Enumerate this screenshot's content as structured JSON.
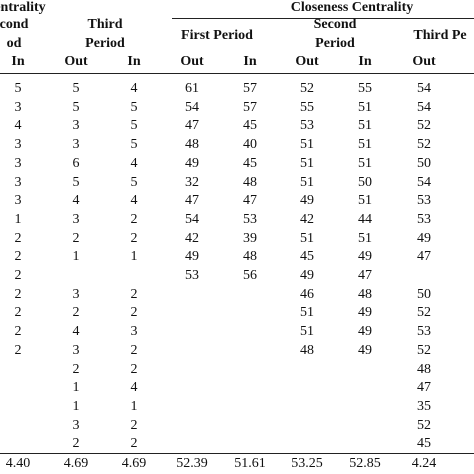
{
  "header": {
    "degree": "entrality",
    "closeness": "Closeness Centrality",
    "periods": [
      [
        "cond",
        "od"
      ],
      [
        "Third",
        "Period"
      ],
      [
        "First Period"
      ],
      [
        "Second",
        "Period"
      ],
      [
        "Third Pe"
      ]
    ],
    "subheaders": [
      "In",
      "Out",
      "In",
      "Out",
      "In",
      "Out",
      "In",
      "Out"
    ]
  },
  "table": {
    "rows": [
      [
        "5",
        "5",
        "4",
        "61",
        "57",
        "52",
        "55",
        "54"
      ],
      [
        "3",
        "5",
        "5",
        "54",
        "57",
        "55",
        "51",
        "54"
      ],
      [
        "4",
        "3",
        "5",
        "47",
        "45",
        "53",
        "51",
        "52"
      ],
      [
        "3",
        "3",
        "5",
        "48",
        "40",
        "51",
        "51",
        "52"
      ],
      [
        "3",
        "6",
        "4",
        "49",
        "45",
        "51",
        "51",
        "50"
      ],
      [
        "3",
        "5",
        "5",
        "32",
        "48",
        "51",
        "50",
        "54"
      ],
      [
        "3",
        "4",
        "4",
        "47",
        "47",
        "49",
        "51",
        "53"
      ],
      [
        "1",
        "3",
        "2",
        "54",
        "53",
        "42",
        "44",
        "53"
      ],
      [
        "2",
        "2",
        "2",
        "42",
        "39",
        "51",
        "51",
        "49"
      ],
      [
        "2",
        "1",
        "1",
        "49",
        "48",
        "45",
        "49",
        "47"
      ],
      [
        "2",
        "",
        "",
        "53",
        "56",
        "49",
        "47",
        ""
      ],
      [
        "2",
        "3",
        "2",
        "",
        "",
        "46",
        "48",
        "50"
      ],
      [
        "2",
        "2",
        "2",
        "",
        "",
        "51",
        "49",
        "52"
      ],
      [
        "2",
        "4",
        "3",
        "",
        "",
        "51",
        "49",
        "53"
      ],
      [
        "2",
        "3",
        "2",
        "",
        "",
        "48",
        "49",
        "52"
      ],
      [
        "",
        "2",
        "2",
        "",
        "",
        "",
        "",
        "48"
      ],
      [
        "",
        "1",
        "4",
        "",
        "",
        "",
        "",
        "47"
      ],
      [
        "",
        "1",
        "1",
        "",
        "",
        "",
        "",
        "35"
      ],
      [
        "",
        "3",
        "2",
        "",
        "",
        "",
        "",
        "52"
      ],
      [
        "",
        "2",
        "2",
        "",
        "",
        "",
        "",
        "45"
      ]
    ],
    "totals": [
      "4.40",
      "4.69",
      "4.69",
      "52.39",
      "51.61",
      "53.25",
      "52.85",
      "4.24"
    ]
  }
}
